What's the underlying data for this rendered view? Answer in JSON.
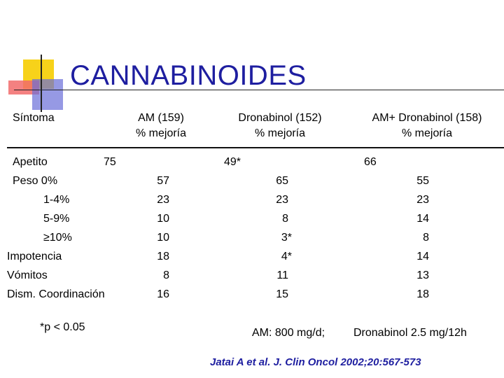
{
  "title": "CANNABINOIDES",
  "headers": {
    "sintoma": "Síntoma",
    "am_name": "AM (159)",
    "am_sub": "% mejoría",
    "dro_name": "Dronabinol (152)",
    "dro_sub": "% mejoría",
    "amdro_name": "AM+ Dronabinol (158)",
    "amdro_sub": "% mejoría"
  },
  "rows": [
    {
      "label": "Apetito",
      "am": "75",
      "dro": "49*",
      "amdro": "66"
    },
    {
      "label": "Peso  0%",
      "am": "57",
      "dro": "65",
      "amdro": "55"
    },
    {
      "label": "1-4%",
      "am": "23",
      "dro": "23",
      "amdro": "23"
    },
    {
      "label": "5-9%",
      "am": "10",
      "dro": "8",
      "amdro": "14"
    },
    {
      "label": "≥10%",
      "am": "10",
      "dro": "3*",
      "amdro": "8"
    },
    {
      "label": "Impotencia",
      "am": "18",
      "dro": "4*",
      "amdro": "14"
    },
    {
      "label": "Vómitos",
      "am": "8",
      "dro": "11",
      "amdro": "13"
    },
    {
      "label": "Dism. Coordinación",
      "am": "16",
      "dro": "15",
      "amdro": "18"
    }
  ],
  "footnotes": {
    "significance": "*p < 0.05",
    "am_dose": "AM: 800 mg/d;",
    "dro_dose": "Dronabinol 2.5 mg/12h"
  },
  "citation": "Jatai A et al. J. Clin Oncol 2002;20:567-573"
}
